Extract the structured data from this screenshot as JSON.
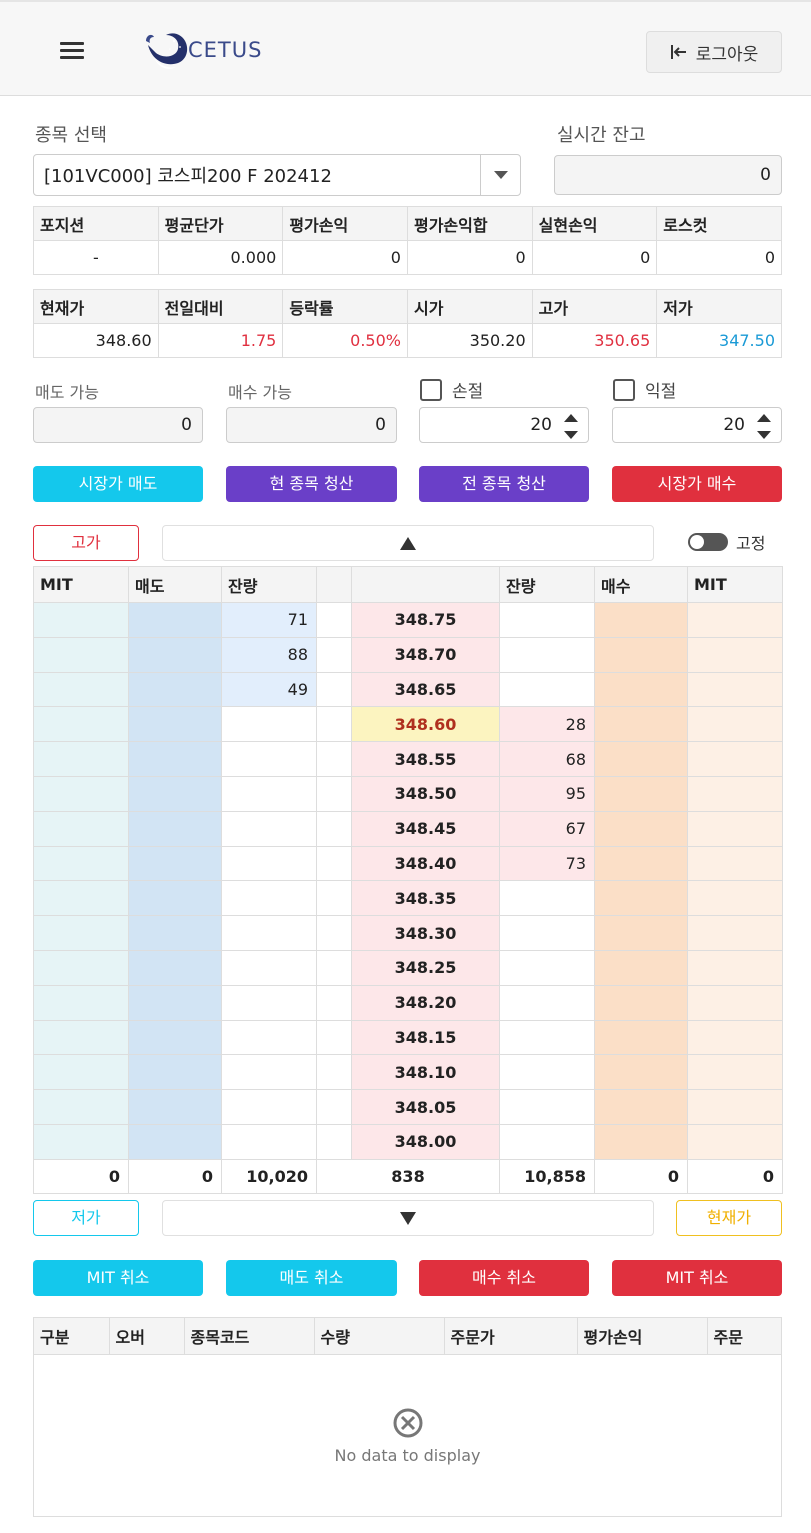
{
  "header": {
    "brand": "CETUS",
    "logout_label": "로그아웃"
  },
  "form": {
    "symbol_label": "종목 선택",
    "symbol_value": "[101VC000] 코스피200 F 202412",
    "balance_label": "실시간 잔고",
    "balance_value": "0"
  },
  "position": {
    "headers": [
      "포지션",
      "평균단가",
      "평가손익",
      "평가손익합",
      "실현손익",
      "로스컷"
    ],
    "values": [
      "-",
      "0.000",
      "0",
      "0",
      "0",
      "0"
    ]
  },
  "quote": {
    "headers": [
      "현재가",
      "전일대비",
      "등락률",
      "시가",
      "고가",
      "저가"
    ],
    "values": [
      "348.60",
      "1.75",
      "0.50%",
      "350.20",
      "350.65",
      "347.50"
    ]
  },
  "orderable": {
    "sell_label": "매도 가능",
    "sell_value": "0",
    "buy_label": "매수 가능",
    "buy_value": "0",
    "stoploss_label": "손절",
    "stoploss_value": "20",
    "takeprofit_label": "익절",
    "takeprofit_value": "20"
  },
  "actions": {
    "market_sell": "시장가 매도",
    "liquidate_current": "현 종목 청산",
    "liquidate_all": "전 종목 청산",
    "market_buy": "시장가 매수"
  },
  "book_controls": {
    "high_label": "고가",
    "fixed_label": "고정",
    "low_label": "저가",
    "current_label": "현재가"
  },
  "book": {
    "headers": [
      "MIT",
      "매도",
      "잔량",
      "",
      "",
      "잔량",
      "매수",
      "MIT"
    ],
    "rows": [
      {
        "price": "348.75",
        "ask": "71",
        "bid": ""
      },
      {
        "price": "348.70",
        "ask": "88",
        "bid": ""
      },
      {
        "price": "348.65",
        "ask": "49",
        "bid": ""
      },
      {
        "price": "348.60",
        "ask": "",
        "bid": "28",
        "current": true
      },
      {
        "price": "348.55",
        "ask": "",
        "bid": "68"
      },
      {
        "price": "348.50",
        "ask": "",
        "bid": "95"
      },
      {
        "price": "348.45",
        "ask": "",
        "bid": "67"
      },
      {
        "price": "348.40",
        "ask": "",
        "bid": "73"
      },
      {
        "price": "348.35",
        "ask": "",
        "bid": ""
      },
      {
        "price": "348.30",
        "ask": "",
        "bid": ""
      },
      {
        "price": "348.25",
        "ask": "",
        "bid": ""
      },
      {
        "price": "348.20",
        "ask": "",
        "bid": ""
      },
      {
        "price": "348.15",
        "ask": "",
        "bid": ""
      },
      {
        "price": "348.10",
        "ask": "",
        "bid": ""
      },
      {
        "price": "348.05",
        "ask": "",
        "bid": ""
      },
      {
        "price": "348.00",
        "ask": "",
        "bid": ""
      }
    ],
    "totals": [
      "0",
      "0",
      "10,020",
      "838",
      "10,858",
      "0",
      "0"
    ]
  },
  "cancel_actions": {
    "mit_cancel_sell": "MIT 취소",
    "sell_cancel": "매도 취소",
    "buy_cancel": "매수 취소",
    "mit_cancel_buy": "MIT 취소"
  },
  "orders": {
    "headers": [
      "구분",
      "오버",
      "종목코드",
      "수량",
      "주문가",
      "평가손익",
      "주문"
    ],
    "empty_text": "No data to display"
  }
}
